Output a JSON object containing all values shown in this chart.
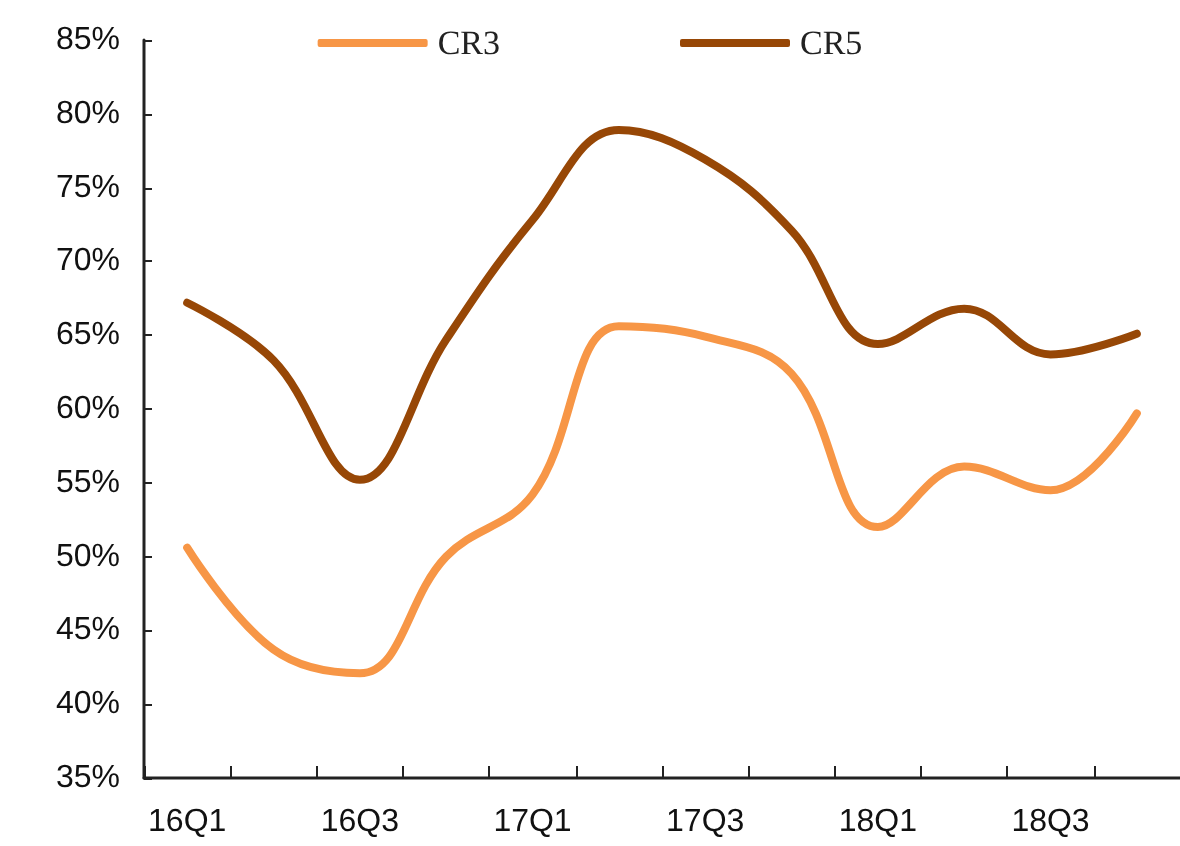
{
  "chart_data": {
    "type": "line",
    "categories": [
      "16Q1",
      null,
      "16Q3",
      null,
      "17Q1",
      null,
      "17Q3",
      null,
      "18Q1",
      null,
      "18Q3",
      null
    ],
    "series": [
      {
        "name": "CR3",
        "color": "#f79646",
        "values": [
          50.6,
          43.7,
          42.1,
          50,
          54.2,
          65.6,
          64.9,
          62.4,
          52,
          56.1,
          54.5,
          59.7
        ]
      },
      {
        "name": "CR5",
        "color": "#974706",
        "values": [
          67.2,
          63.3,
          55.2,
          64.7,
          72.8,
          78.9,
          76.9,
          72.1,
          64.4,
          66.8,
          63.7,
          65.1
        ]
      }
    ],
    "ylim": [
      35,
      85
    ],
    "yticks": [
      {
        "value": 35,
        "label": "35%"
      },
      {
        "value": 40,
        "label": "40%"
      },
      {
        "value": 45,
        "label": "45%"
      },
      {
        "value": 50,
        "label": "50%"
      },
      {
        "value": 55,
        "label": "55%"
      },
      {
        "value": 60,
        "label": "60%"
      },
      {
        "value": 65,
        "label": "65%"
      },
      {
        "value": 70,
        "label": "70%"
      },
      {
        "value": 75,
        "label": "75%"
      },
      {
        "value": 80,
        "label": "80%"
      },
      {
        "value": 85,
        "label": "85%"
      }
    ],
    "grid": false,
    "legend": "top",
    "marker": "none",
    "line_style": "solid"
  }
}
